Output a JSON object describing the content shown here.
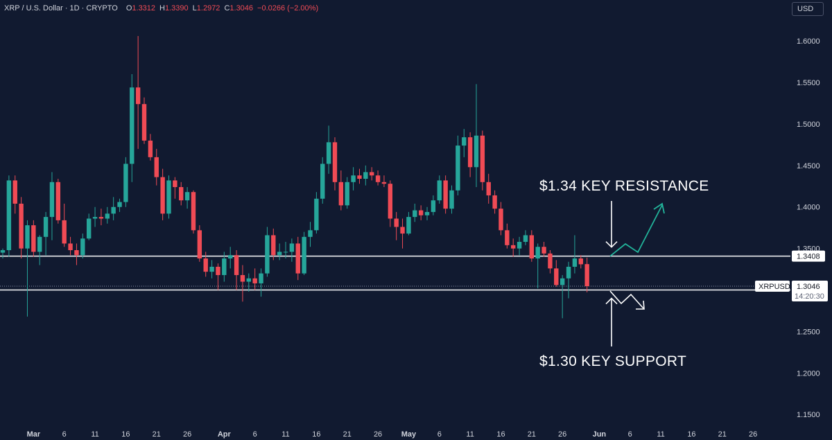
{
  "header": {
    "symbol": "XRP / U.S. Dollar · 1D · CRYPTO",
    "open_label": "O",
    "open_value": "1.3312",
    "high_label": "H",
    "high_value": "1.3390",
    "low_label": "L",
    "low_value": "1.2972",
    "close_label": "C",
    "close_value": "1.3046",
    "change": "−0.0266 (−2.00%)"
  },
  "currency_button": "USD",
  "colors": {
    "up": "#26a69a",
    "down": "#f04b55",
    "background": "#111a30",
    "arrow_up": "#22b59b",
    "level_line": "#ffffff"
  },
  "chart_data": {
    "type": "candlestick",
    "title": "",
    "xlabel": "",
    "ylabel": "",
    "ylim": [
      1.1385,
      1.6285
    ],
    "y_ticks": [
      "1.6000",
      "1.5500",
      "1.5000",
      "1.4500",
      "1.4000",
      "1.3500",
      "1.2500",
      "1.2000",
      "1.1500"
    ],
    "x_ticks": [
      {
        "label": "Mar",
        "index": 5
      },
      {
        "label": "6",
        "index": 10
      },
      {
        "label": "11",
        "index": 15
      },
      {
        "label": "16",
        "index": 20
      },
      {
        "label": "21",
        "index": 25
      },
      {
        "label": "26",
        "index": 30
      },
      {
        "label": "Apr",
        "index": 36
      },
      {
        "label": "6",
        "index": 41
      },
      {
        "label": "11",
        "index": 46
      },
      {
        "label": "16",
        "index": 51
      },
      {
        "label": "21",
        "index": 56
      },
      {
        "label": "26",
        "index": 61
      },
      {
        "label": "May",
        "index": 66
      },
      {
        "label": "6",
        "index": 71
      },
      {
        "label": "11",
        "index": 76
      },
      {
        "label": "16",
        "index": 81
      },
      {
        "label": "21",
        "index": 86
      },
      {
        "label": "26",
        "index": 91
      },
      {
        "label": "Jun",
        "index": 97
      },
      {
        "label": "6",
        "index": 102
      },
      {
        "label": "11",
        "index": 107
      },
      {
        "label": "16",
        "index": 112
      },
      {
        "label": "21",
        "index": 117
      },
      {
        "label": "26",
        "index": 122
      }
    ],
    "candles": [
      [
        1.345,
        1.35,
        1.338,
        1.348
      ],
      [
        1.348,
        1.438,
        1.34,
        1.432
      ],
      [
        1.432,
        1.438,
        1.392,
        1.404
      ],
      [
        1.404,
        1.412,
        1.338,
        1.35
      ],
      [
        1.35,
        1.384,
        1.268,
        1.378
      ],
      [
        1.378,
        1.384,
        1.34,
        1.346
      ],
      [
        1.346,
        1.366,
        1.33,
        1.364
      ],
      [
        1.364,
        1.394,
        1.342,
        1.388
      ],
      [
        1.388,
        1.442,
        1.36,
        1.43
      ],
      [
        1.43,
        1.434,
        1.38,
        1.384
      ],
      [
        1.384,
        1.404,
        1.352,
        1.356
      ],
      [
        1.356,
        1.364,
        1.342,
        1.348
      ],
      [
        1.348,
        1.356,
        1.33,
        1.342
      ],
      [
        1.342,
        1.368,
        1.338,
        1.362
      ],
      [
        1.362,
        1.392,
        1.36,
        1.386
      ],
      [
        1.386,
        1.4,
        1.376,
        1.388
      ],
      [
        1.388,
        1.398,
        1.378,
        1.386
      ],
      [
        1.386,
        1.4,
        1.38,
        1.392
      ],
      [
        1.392,
        1.412,
        1.384,
        1.4
      ],
      [
        1.4,
        1.41,
        1.394,
        1.406
      ],
      [
        1.406,
        1.46,
        1.4,
        1.452
      ],
      [
        1.452,
        1.56,
        1.43,
        1.544
      ],
      [
        1.544,
        1.606,
        1.47,
        1.524
      ],
      [
        1.524,
        1.532,
        1.476,
        1.48
      ],
      [
        1.48,
        1.488,
        1.456,
        1.46
      ],
      [
        1.46,
        1.47,
        1.426,
        1.436
      ],
      [
        1.436,
        1.446,
        1.384,
        1.392
      ],
      [
        1.392,
        1.438,
        1.386,
        1.432
      ],
      [
        1.432,
        1.436,
        1.41,
        1.424
      ],
      [
        1.424,
        1.43,
        1.402,
        1.408
      ],
      [
        1.408,
        1.424,
        1.398,
        1.418
      ],
      [
        1.418,
        1.42,
        1.368,
        1.372
      ],
      [
        1.372,
        1.378,
        1.334,
        1.338
      ],
      [
        1.338,
        1.346,
        1.316,
        1.322
      ],
      [
        1.322,
        1.336,
        1.314,
        1.328
      ],
      [
        1.328,
        1.332,
        1.3,
        1.318
      ],
      [
        1.318,
        1.346,
        1.31,
        1.338
      ],
      [
        1.338,
        1.352,
        1.326,
        1.342
      ],
      [
        1.342,
        1.348,
        1.3,
        1.318
      ],
      [
        1.318,
        1.33,
        1.286,
        1.31
      ],
      [
        1.31,
        1.32,
        1.298,
        1.314
      ],
      [
        1.314,
        1.326,
        1.3,
        1.308
      ],
      [
        1.308,
        1.326,
        1.292,
        1.32
      ],
      [
        1.32,
        1.376,
        1.316,
        1.366
      ],
      [
        1.366,
        1.374,
        1.336,
        1.342
      ],
      [
        1.342,
        1.356,
        1.336,
        1.346
      ],
      [
        1.346,
        1.358,
        1.338,
        1.346
      ],
      [
        1.346,
        1.362,
        1.334,
        1.356
      ],
      [
        1.356,
        1.364,
        1.312,
        1.32
      ],
      [
        1.32,
        1.37,
        1.318,
        1.364
      ],
      [
        1.364,
        1.382,
        1.352,
        1.372
      ],
      [
        1.372,
        1.418,
        1.368,
        1.41
      ],
      [
        1.41,
        1.46,
        1.404,
        1.452
      ],
      [
        1.452,
        1.498,
        1.44,
        1.478
      ],
      [
        1.478,
        1.484,
        1.42,
        1.43
      ],
      [
        1.43,
        1.444,
        1.396,
        1.402
      ],
      [
        1.402,
        1.436,
        1.398,
        1.43
      ],
      [
        1.43,
        1.448,
        1.42,
        1.438
      ],
      [
        1.438,
        1.446,
        1.428,
        1.434
      ],
      [
        1.434,
        1.45,
        1.426,
        1.442
      ],
      [
        1.442,
        1.448,
        1.432,
        1.438
      ],
      [
        1.438,
        1.444,
        1.426,
        1.43
      ],
      [
        1.43,
        1.438,
        1.424,
        1.428
      ],
      [
        1.428,
        1.432,
        1.376,
        1.386
      ],
      [
        1.386,
        1.394,
        1.36,
        1.376
      ],
      [
        1.376,
        1.386,
        1.35,
        1.368
      ],
      [
        1.368,
        1.394,
        1.366,
        1.388
      ],
      [
        1.388,
        1.404,
        1.382,
        1.396
      ],
      [
        1.396,
        1.402,
        1.384,
        1.39
      ],
      [
        1.39,
        1.4,
        1.384,
        1.394
      ],
      [
        1.394,
        1.414,
        1.39,
        1.408
      ],
      [
        1.408,
        1.438,
        1.404,
        1.432
      ],
      [
        1.432,
        1.438,
        1.392,
        1.398
      ],
      [
        1.398,
        1.426,
        1.392,
        1.42
      ],
      [
        1.42,
        1.486,
        1.414,
        1.474
      ],
      [
        1.474,
        1.494,
        1.46,
        1.484
      ],
      [
        1.484,
        1.49,
        1.436,
        1.448
      ],
      [
        1.448,
        1.548,
        1.424,
        1.486
      ],
      [
        1.486,
        1.492,
        1.42,
        1.43
      ],
      [
        1.43,
        1.44,
        1.404,
        1.414
      ],
      [
        1.414,
        1.42,
        1.392,
        1.398
      ],
      [
        1.398,
        1.406,
        1.366,
        1.372
      ],
      [
        1.372,
        1.38,
        1.35,
        1.354
      ],
      [
        1.354,
        1.362,
        1.34,
        1.35
      ],
      [
        1.35,
        1.364,
        1.342,
        1.358
      ],
      [
        1.358,
        1.372,
        1.354,
        1.366
      ],
      [
        1.366,
        1.372,
        1.334,
        1.338
      ],
      [
        1.338,
        1.356,
        1.302,
        1.352
      ],
      [
        1.352,
        1.358,
        1.34,
        1.344
      ],
      [
        1.344,
        1.348,
        1.32,
        1.326
      ],
      [
        1.326,
        1.336,
        1.304,
        1.306
      ],
      [
        1.306,
        1.318,
        1.266,
        1.314
      ],
      [
        1.314,
        1.334,
        1.29,
        1.328
      ],
      [
        1.328,
        1.366,
        1.32,
        1.338
      ],
      [
        1.338,
        1.342,
        1.326,
        1.331
      ],
      [
        1.3312,
        1.339,
        1.2972,
        1.3046
      ]
    ],
    "levels": [
      {
        "name": "resistance",
        "value": 1.3408,
        "label": "1.3408"
      },
      {
        "name": "support",
        "value": 1.3,
        "label": ""
      }
    ],
    "last_price": {
      "symbol": "XRPUSD",
      "value": 1.3046,
      "label": "1.3046",
      "countdown": "14:20:30"
    },
    "annotations": [
      {
        "text": "$1.34 KEY RESISTANCE"
      },
      {
        "text": "$1.30 KEY SUPPORT"
      }
    ]
  }
}
